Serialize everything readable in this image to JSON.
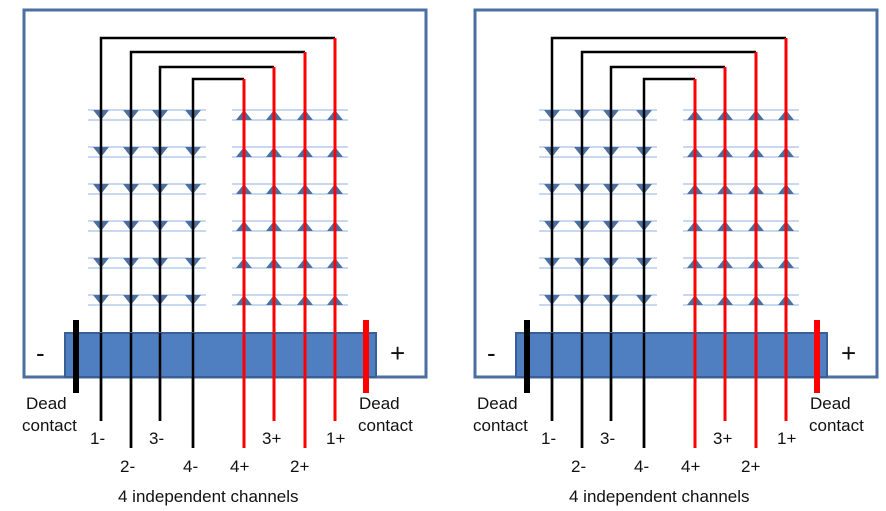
{
  "panels": [
    {
      "minus_sign": "-",
      "plus_sign": "+",
      "dead_left": [
        "Dead",
        "contact"
      ],
      "dead_right": [
        "Dead",
        "contact"
      ],
      "channels": [
        "1-",
        "2-",
        "3-",
        "4-",
        "4+",
        "3+",
        "2+",
        "1+"
      ],
      "caption": "4 independent channels"
    },
    {
      "minus_sign": "-",
      "plus_sign": "+",
      "dead_left": [
        "Dead",
        "contact"
      ],
      "dead_right": [
        "Dead",
        "contact"
      ],
      "channels": [
        "1-",
        "2-",
        "3-",
        "4-",
        "4+",
        "3+",
        "2+",
        "1+"
      ],
      "caption": "4 independent channels"
    }
  ],
  "colors": {
    "frame": "#4a6fa0",
    "bar_fill": "#4f7fc1",
    "bar_stroke": "#3a5f95",
    "negative_wire": "#000000",
    "positive_wire": "#ff0000",
    "diode": "#4a6fa0",
    "diode_line": "#8fb0e0"
  }
}
